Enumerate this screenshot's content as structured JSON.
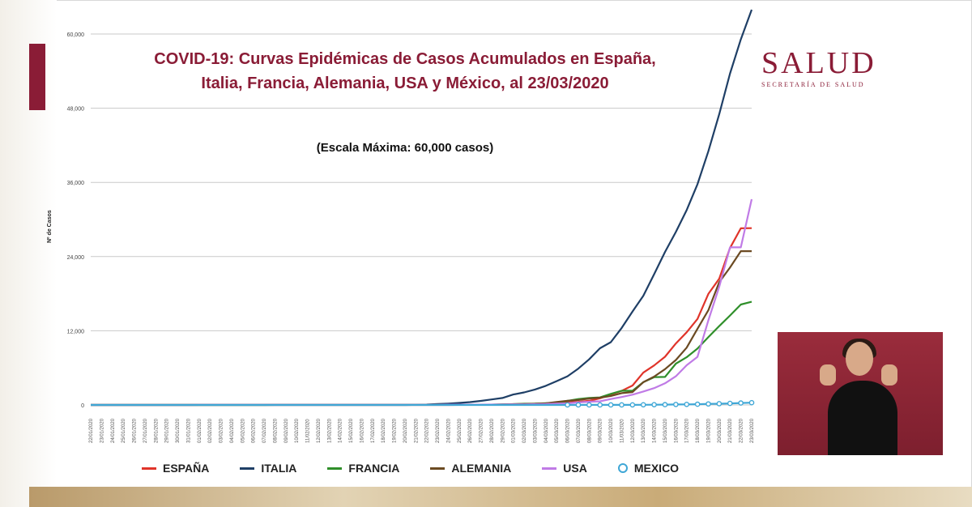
{
  "header": {
    "title_line1": "COVID-19: Curvas Epidémicas de Casos Acumulados en España,",
    "title_line2": "Italia, Francia, Alemania, USA y México, al 23/03/2020",
    "subtitle": "(Escala Máxima: 60,000 casos)"
  },
  "logo": {
    "main": "SALUD",
    "sub": "SECRETARÍA DE SALUD"
  },
  "colors": {
    "brand": "#8a1c36",
    "espana": "#e0342a",
    "italia": "#1f3f66",
    "francia": "#2f8f2a",
    "alemania": "#6b4a22",
    "usa": "#c07be6",
    "mexico": "#3fa7d6",
    "grid": "#c9c9c9"
  },
  "chart_data": {
    "type": "line",
    "title": "COVID-19: Curvas Epidémicas de Casos Acumulados en España, Italia, Francia, Alemania, USA y México, al 23/03/2020",
    "subtitle": "(Escala Máxima: 60,000 casos)",
    "ylabel": "Nº de Casos",
    "xlabel": "",
    "ylim": [
      0,
      60000
    ],
    "yticks": [
      "0",
      "12,000",
      "24,000",
      "36,000",
      "48,000",
      "60,000"
    ],
    "ytick_values": [
      0,
      12000,
      24000,
      36000,
      48000,
      60000
    ],
    "grid": true,
    "legend_position": "bottom",
    "x": [
      "22/01/2020",
      "23/01/2020",
      "24/01/2020",
      "25/01/2020",
      "26/01/2020",
      "27/01/2020",
      "28/01/2020",
      "29/01/2020",
      "30/01/2020",
      "31/01/2020",
      "01/02/2020",
      "02/02/2020",
      "03/02/2020",
      "04/02/2020",
      "05/02/2020",
      "06/02/2020",
      "07/02/2020",
      "08/02/2020",
      "09/02/2020",
      "10/02/2020",
      "11/02/2020",
      "12/02/2020",
      "13/02/2020",
      "14/02/2020",
      "15/02/2020",
      "16/02/2020",
      "17/02/2020",
      "18/02/2020",
      "19/02/2020",
      "20/02/2020",
      "21/02/2020",
      "22/02/2020",
      "23/02/2020",
      "24/02/2020",
      "25/02/2020",
      "26/02/2020",
      "27/02/2020",
      "28/02/2020",
      "29/02/2020",
      "01/03/2020",
      "02/03/2020",
      "03/03/2020",
      "04/03/2020",
      "05/03/2020",
      "06/03/2020",
      "07/03/2020",
      "08/03/2020",
      "09/03/2020",
      "10/03/2020",
      "11/03/2020",
      "12/03/2020",
      "13/03/2020",
      "14/03/2020",
      "15/03/2020",
      "16/03/2020",
      "17/03/2020",
      "18/03/2020",
      "19/03/2020",
      "20/03/2020",
      "21/03/2020",
      "22/03/2020",
      "23/03/2020"
    ],
    "series": [
      {
        "name": "ESPAÑA",
        "color_key": "espana",
        "values": [
          0,
          0,
          0,
          0,
          0,
          0,
          0,
          0,
          0,
          0,
          1,
          1,
          1,
          1,
          1,
          1,
          1,
          1,
          2,
          2,
          2,
          2,
          2,
          2,
          2,
          2,
          2,
          2,
          2,
          2,
          2,
          2,
          2,
          3,
          9,
          15,
          25,
          32,
          45,
          84,
          120,
          165,
          222,
          259,
          400,
          500,
          673,
          1073,
          1695,
          2277,
          3146,
          5232,
          6391,
          7798,
          9942,
          11748,
          13910,
          17963,
          20410,
          25374,
          28572,
          28603
        ]
      },
      {
        "name": "ITALIA",
        "color_key": "italia",
        "values": [
          0,
          0,
          0,
          0,
          0,
          0,
          0,
          0,
          0,
          2,
          2,
          2,
          2,
          2,
          2,
          2,
          3,
          3,
          3,
          3,
          3,
          3,
          3,
          3,
          3,
          3,
          3,
          3,
          3,
          3,
          20,
          62,
          155,
          229,
          322,
          453,
          655,
          888,
          1128,
          1694,
          2036,
          2502,
          3089,
          3858,
          4636,
          5883,
          7375,
          9172,
          10149,
          12462,
          15113,
          17660,
          21157,
          24747,
          27980,
          31506,
          35713,
          41035,
          47021,
          53578,
          59138,
          63927
        ]
      },
      {
        "name": "FRANCIA",
        "color_key": "francia",
        "values": [
          0,
          0,
          2,
          3,
          3,
          3,
          4,
          5,
          5,
          5,
          6,
          6,
          6,
          6,
          6,
          6,
          6,
          11,
          11,
          11,
          11,
          11,
          11,
          11,
          12,
          12,
          12,
          12,
          12,
          12,
          12,
          12,
          12,
          12,
          14,
          18,
          38,
          57,
          100,
          130,
          191,
          204,
          288,
          380,
          656,
          959,
          1136,
          1219,
          1794,
          2293,
          2293,
          3681,
          4496,
          4532,
          6683,
          7715,
          9124,
          10970,
          12758,
          14463,
          16243,
          16689
        ]
      },
      {
        "name": "ALEMANIA",
        "color_key": "alemania",
        "values": [
          0,
          0,
          0,
          0,
          0,
          1,
          4,
          4,
          4,
          5,
          8,
          10,
          12,
          12,
          12,
          12,
          13,
          13,
          14,
          14,
          16,
          16,
          16,
          16,
          16,
          16,
          16,
          16,
          16,
          16,
          16,
          16,
          16,
          16,
          17,
          27,
          46,
          48,
          79,
          130,
          159,
          196,
          262,
          482,
          670,
          799,
          1040,
          1176,
          1457,
          1908,
          2078,
          3675,
          4585,
          5795,
          7272,
          9257,
          12327,
          15320,
          19848,
          22213,
          24873,
          24873
        ]
      },
      {
        "name": "USA",
        "color_key": "usa",
        "values": [
          1,
          1,
          2,
          2,
          5,
          5,
          5,
          5,
          5,
          6,
          8,
          8,
          11,
          11,
          11,
          12,
          12,
          12,
          12,
          12,
          13,
          13,
          14,
          14,
          14,
          14,
          14,
          14,
          14,
          14,
          15,
          15,
          15,
          51,
          51,
          57,
          58,
          60,
          68,
          74,
          98,
          118,
          149,
          217,
          262,
          402,
          518,
          583,
          959,
          1281,
          1663,
          2179,
          2727,
          3499,
          4632,
          6421,
          7783,
          13677,
          19100,
          25489,
          25489,
          33276
        ]
      },
      {
        "name": "MEXICO",
        "color_key": "mexico",
        "values": [
          0,
          0,
          0,
          0,
          0,
          0,
          0,
          0,
          0,
          0,
          0,
          0,
          0,
          0,
          0,
          0,
          0,
          0,
          0,
          0,
          0,
          0,
          0,
          0,
          0,
          0,
          0,
          0,
          0,
          0,
          0,
          0,
          0,
          0,
          0,
          0,
          0,
          0,
          4,
          5,
          5,
          5,
          5,
          5,
          6,
          6,
          7,
          7,
          7,
          8,
          12,
          26,
          41,
          53,
          82,
          93,
          118,
          164,
          203,
          251,
          316,
          367
        ]
      }
    ]
  },
  "legend": [
    {
      "label": "ESPAÑA",
      "color_key": "espana",
      "marker": "line"
    },
    {
      "label": "ITALIA",
      "color_key": "italia",
      "marker": "line"
    },
    {
      "label": "FRANCIA",
      "color_key": "francia",
      "marker": "line"
    },
    {
      "label": "ALEMANIA",
      "color_key": "alemania",
      "marker": "line"
    },
    {
      "label": "USA",
      "color_key": "usa",
      "marker": "line"
    },
    {
      "label": "MEXICO",
      "color_key": "mexico",
      "marker": "circle"
    }
  ]
}
